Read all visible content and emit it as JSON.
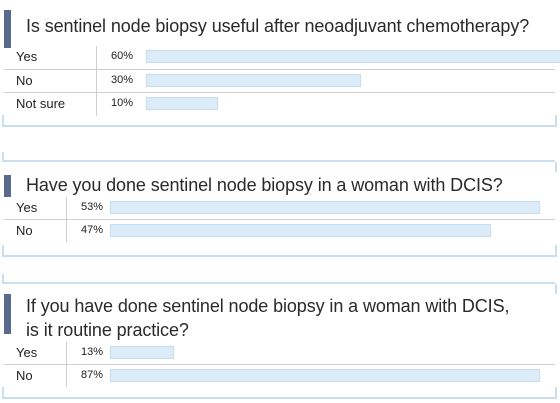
{
  "chart_data": [
    {
      "type": "bar",
      "title": "Is sentinel node biopsy useful after neoadjuvant chemotherapy?",
      "categories": [
        "Yes",
        "No",
        "Not sure"
      ],
      "values": [
        60,
        30,
        10
      ],
      "value_labels": [
        "60%",
        "30%",
        "10%"
      ],
      "unit": "%"
    },
    {
      "type": "bar",
      "title": "Have you done sentinel node biopsy in a woman with DCIS?",
      "categories": [
        "Yes",
        "No"
      ],
      "values": [
        53,
        47
      ],
      "value_labels": [
        "53%",
        "47%"
      ],
      "unit": "%"
    },
    {
      "type": "bar",
      "title": "If you have done sentinel node biopsy in a woman with DCIS,\nis it routine practice?",
      "categories": [
        "Yes",
        "No"
      ],
      "values": [
        13,
        87
      ],
      "value_labels": [
        "13%",
        "87%"
      ],
      "unit": "%"
    }
  ],
  "colors": {
    "bar_fill": "#dcebf8",
    "accent": "#5a6a8c",
    "frame": "#c9dff0"
  }
}
